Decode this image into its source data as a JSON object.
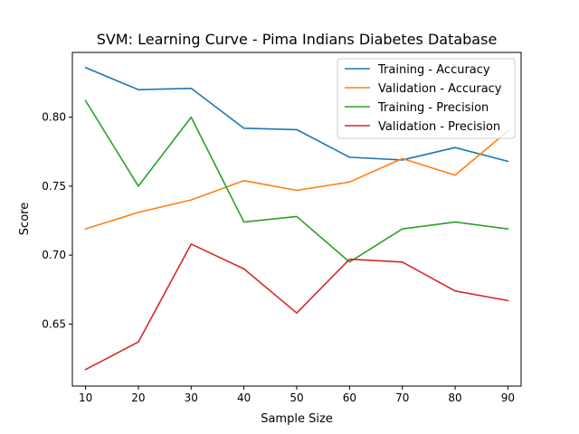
{
  "chart_data": {
    "type": "line",
    "title": "SVM: Learning Curve - Pima Indians Diabetes Database",
    "xlabel": "Sample Size",
    "ylabel": "Score",
    "x": [
      10,
      20,
      30,
      40,
      50,
      60,
      70,
      80,
      90
    ],
    "xlim": [
      7.5,
      92.5
    ],
    "ylim": [
      0.605,
      0.847
    ],
    "xticks": [
      10,
      20,
      30,
      40,
      50,
      60,
      70,
      80,
      90
    ],
    "yticks": [
      0.65,
      0.7,
      0.75,
      0.8
    ],
    "ytick_labels": [
      "0.65",
      "0.70",
      "0.75",
      "0.80"
    ],
    "grid": false,
    "legend_position": "top-right",
    "series": [
      {
        "name": "Training - Accuracy",
        "color": "#1f77b4",
        "values": [
          0.836,
          0.82,
          0.821,
          0.792,
          0.791,
          0.771,
          0.769,
          0.778,
          0.768
        ]
      },
      {
        "name": "Validation - Accuracy",
        "color": "#ff7f0e",
        "values": [
          0.719,
          0.731,
          0.74,
          0.754,
          0.747,
          0.753,
          0.77,
          0.758,
          0.79
        ]
      },
      {
        "name": "Training - Precision",
        "color": "#2ca02c",
        "values": [
          0.812,
          0.75,
          0.8,
          0.724,
          0.728,
          0.695,
          0.719,
          0.724,
          0.719
        ]
      },
      {
        "name": "Validation - Precision",
        "color": "#d62728",
        "values": [
          0.617,
          0.637,
          0.708,
          0.69,
          0.658,
          0.697,
          0.695,
          0.674,
          0.667
        ]
      }
    ]
  }
}
